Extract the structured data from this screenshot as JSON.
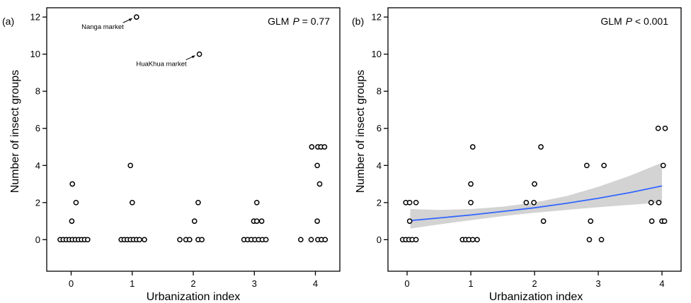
{
  "chart_data": [
    {
      "type": "scatter",
      "panel_label": "(a)",
      "stat_label": "GLM",
      "p_symbol": "P",
      "p_value": " = 0.77",
      "xlabel": "Urbanization index",
      "ylabel": "Number of insect groups",
      "xlim": [
        -0.4,
        4.4
      ],
      "ylim": [
        -1.7,
        12.5
      ],
      "xticks": [
        "0",
        "1",
        "2",
        "3",
        "4"
      ],
      "yticks": [
        "0",
        "2",
        "4",
        "6",
        "8",
        "10",
        "12"
      ],
      "points": [
        [
          -0.18,
          0
        ],
        [
          -0.13,
          0
        ],
        [
          -0.08,
          0
        ],
        [
          -0.03,
          0
        ],
        [
          0.02,
          0
        ],
        [
          0.07,
          0
        ],
        [
          0.12,
          0
        ],
        [
          0.17,
          0
        ],
        [
          0.22,
          0
        ],
        [
          0.27,
          0
        ],
        [
          0.01,
          1
        ],
        [
          0.02,
          3
        ],
        [
          0.08,
          2
        ],
        [
          0.82,
          0
        ],
        [
          0.87,
          0
        ],
        [
          0.92,
          0
        ],
        [
          0.97,
          0
        ],
        [
          1.02,
          0
        ],
        [
          1.07,
          0
        ],
        [
          1.12,
          0
        ],
        [
          1.2,
          0
        ],
        [
          0.97,
          4
        ],
        [
          1.0,
          2
        ],
        [
          1.07,
          12
        ],
        [
          1.78,
          0
        ],
        [
          1.88,
          0
        ],
        [
          1.94,
          0
        ],
        [
          2.08,
          0
        ],
        [
          2.14,
          0
        ],
        [
          2.02,
          1
        ],
        [
          2.08,
          2
        ],
        [
          2.1,
          10
        ],
        [
          2.83,
          0
        ],
        [
          2.89,
          0
        ],
        [
          2.95,
          0
        ],
        [
          3.01,
          0
        ],
        [
          3.07,
          0
        ],
        [
          3.13,
          0
        ],
        [
          3.19,
          0
        ],
        [
          2.99,
          1
        ],
        [
          3.04,
          1
        ],
        [
          3.12,
          1
        ],
        [
          3.04,
          2
        ],
        [
          3.76,
          0
        ],
        [
          3.93,
          0
        ],
        [
          4.04,
          0
        ],
        [
          4.1,
          0
        ],
        [
          4.16,
          0
        ],
        [
          4.03,
          1
        ],
        [
          4.07,
          3
        ],
        [
          4.03,
          4
        ],
        [
          3.94,
          5
        ],
        [
          4.04,
          5
        ],
        [
          4.09,
          5
        ],
        [
          4.15,
          5
        ]
      ],
      "annotations": [
        {
          "text": "Nanga market",
          "x": 1.07,
          "y": 12
        },
        {
          "text": "HuaKhua market",
          "x": 2.1,
          "y": 10
        }
      ]
    },
    {
      "type": "scatter",
      "panel_label": "(b)",
      "stat_label": "GLM",
      "p_symbol": "P",
      "p_value": " < 0.001",
      "xlabel": "Urbanization index",
      "ylabel": "Number of insect groups",
      "xlim": [
        -0.3,
        4.3
      ],
      "ylim": [
        -1.7,
        12.5
      ],
      "xticks": [
        "0",
        "1",
        "2",
        "3",
        "4"
      ],
      "yticks": [
        "0",
        "2",
        "4",
        "6",
        "8",
        "10",
        "12"
      ],
      "points": [
        [
          -0.07,
          0
        ],
        [
          -0.02,
          0
        ],
        [
          0.03,
          0
        ],
        [
          0.08,
          0
        ],
        [
          0.14,
          0
        ],
        [
          0.04,
          1
        ],
        [
          -0.02,
          2
        ],
        [
          0.04,
          2
        ],
        [
          0.14,
          2
        ],
        [
          0.87,
          0
        ],
        [
          0.92,
          0
        ],
        [
          0.97,
          0
        ],
        [
          1.03,
          0
        ],
        [
          1.1,
          0
        ],
        [
          1.0,
          2
        ],
        [
          1.0,
          3
        ],
        [
          1.03,
          5
        ],
        [
          1.87,
          2
        ],
        [
          1.99,
          2
        ],
        [
          2.0,
          3
        ],
        [
          2.1,
          5
        ],
        [
          2.14,
          1
        ],
        [
          2.82,
          4
        ],
        [
          2.86,
          0
        ],
        [
          2.88,
          1
        ],
        [
          3.05,
          0
        ],
        [
          3.09,
          4
        ],
        [
          3.83,
          2
        ],
        [
          3.84,
          1
        ],
        [
          3.95,
          2
        ],
        [
          3.94,
          6
        ],
        [
          4.0,
          1
        ],
        [
          4.02,
          4
        ],
        [
          4.04,
          1
        ],
        [
          4.05,
          6
        ]
      ],
      "fit_line": {
        "x": [
          0.05,
          0.5,
          1.0,
          1.5,
          2.0,
          2.5,
          3.0,
          3.5,
          4.0
        ],
        "y": [
          1.03,
          1.17,
          1.33,
          1.52,
          1.72,
          1.96,
          2.23,
          2.54,
          2.9
        ],
        "ci_lower": [
          0.6,
          0.82,
          1.05,
          1.27,
          1.45,
          1.6,
          1.75,
          1.88,
          2.0
        ],
        "ci_upper": [
          1.65,
          1.6,
          1.65,
          1.78,
          2.0,
          2.35,
          2.85,
          3.45,
          4.15
        ],
        "line_color": "#3366ff",
        "band_color": "#d3d3d3"
      }
    }
  ]
}
